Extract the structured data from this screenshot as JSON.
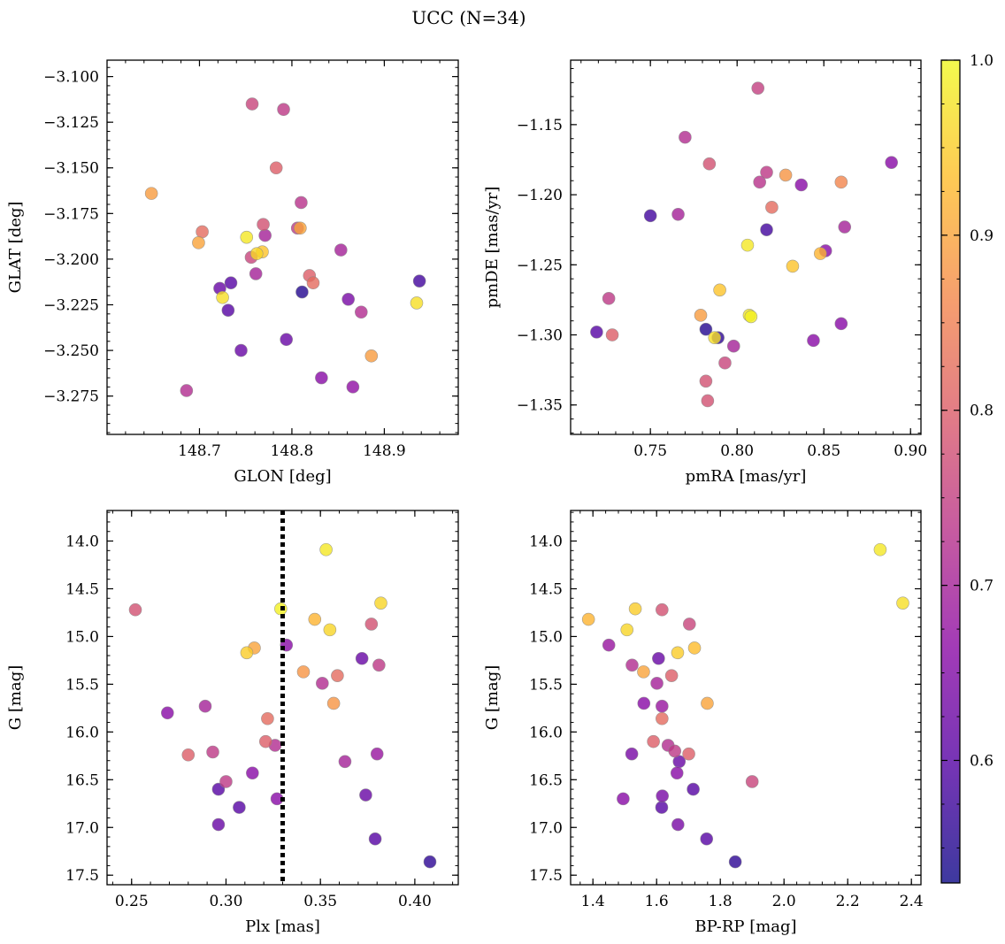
{
  "figure": {
    "title": "UCC (N=34)"
  },
  "colorbar": {
    "range": [
      0.53,
      1.0
    ],
    "ticks": [
      0.6,
      0.7,
      0.8,
      0.9,
      1.0
    ],
    "tick_labels": [
      "0.6",
      "0.7",
      "0.8",
      "0.9",
      "1.0"
    ],
    "colormap": "plasma",
    "stops": [
      "#0d0887",
      "#5302a3",
      "#8b0aa5",
      "#b83289",
      "#db5c68",
      "#f48849",
      "#febd2a",
      "#f0f921"
    ],
    "alpha": 0.8
  },
  "chart_data": [
    {
      "type": "scatter",
      "title": "",
      "xlabel": "GLON [deg]",
      "ylabel": "GLAT [deg]",
      "xlim": [
        148.6,
        148.98
      ],
      "ylim": [
        -3.296,
        -3.091
      ],
      "y_inverted": false,
      "xticks": [
        148.7,
        148.8,
        148.9
      ],
      "xtick_labels": [
        "148.7",
        "148.8",
        "148.9"
      ],
      "yticks": [
        -3.275,
        -3.25,
        -3.225,
        -3.2,
        -3.175,
        -3.15,
        -3.125,
        -3.1
      ],
      "ytick_labels": [
        "−3.275",
        "−3.250",
        "−3.225",
        "−3.200",
        "−3.175",
        "−3.150",
        "−3.125",
        "−3.100"
      ],
      "x": [
        148.757,
        148.791,
        148.783,
        148.648,
        148.806,
        148.703,
        148.699,
        148.769,
        148.771,
        148.751,
        148.762,
        148.81,
        148.768,
        148.761,
        148.853,
        148.756,
        148.819,
        148.734,
        148.722,
        148.823,
        148.811,
        148.725,
        148.861,
        148.875,
        148.731,
        148.938,
        148.935,
        148.794,
        148.745,
        148.886,
        148.832,
        148.866,
        148.686,
        148.809
      ],
      "y": [
        -3.115,
        -3.118,
        -3.15,
        -3.164,
        -3.183,
        -3.185,
        -3.191,
        -3.181,
        -3.187,
        -3.188,
        -3.197,
        -3.169,
        -3.196,
        -3.208,
        -3.195,
        -3.199,
        -3.209,
        -3.213,
        -3.216,
        -3.213,
        -3.218,
        -3.221,
        -3.222,
        -3.229,
        -3.228,
        -3.212,
        -3.224,
        -3.244,
        -3.25,
        -3.253,
        -3.265,
        -3.27,
        -3.272,
        -3.183
      ],
      "c": [
        0.76,
        0.74,
        0.8,
        0.89,
        0.74,
        0.82,
        0.9,
        0.78,
        0.7,
        0.98,
        0.96,
        0.73,
        0.94,
        0.7,
        0.7,
        0.76,
        0.8,
        0.6,
        0.62,
        0.82,
        0.55,
        0.97,
        0.64,
        0.72,
        0.6,
        0.58,
        0.97,
        0.62,
        0.62,
        0.89,
        0.66,
        0.67,
        0.72,
        0.9
      ]
    },
    {
      "type": "scatter",
      "title": "",
      "xlabel": "pmRA [mas/yr]",
      "ylabel": "pmDE [mas/yr]",
      "xlim": [
        0.704,
        0.906
      ],
      "ylim": [
        -1.371,
        -1.104
      ],
      "y_inverted": false,
      "xticks": [
        0.75,
        0.8,
        0.85,
        0.9
      ],
      "xtick_labels": [
        "0.75",
        "0.80",
        "0.85",
        "0.90"
      ],
      "yticks": [
        -1.35,
        -1.3,
        -1.25,
        -1.2,
        -1.15
      ],
      "ytick_labels": [
        "−1.35",
        "−1.30",
        "−1.25",
        "−1.20",
        "−1.15"
      ],
      "x": [
        0.812,
        0.77,
        0.784,
        0.889,
        0.813,
        0.817,
        0.828,
        0.86,
        0.837,
        0.82,
        0.75,
        0.766,
        0.817,
        0.862,
        0.806,
        0.851,
        0.848,
        0.832,
        0.726,
        0.79,
        0.779,
        0.807,
        0.719,
        0.728,
        0.782,
        0.789,
        0.787,
        0.844,
        0.86,
        0.798,
        0.793,
        0.782,
        0.783,
        0.808
      ],
      "y": [
        -1.124,
        -1.159,
        -1.178,
        -1.177,
        -1.191,
        -1.184,
        -1.186,
        -1.191,
        -1.193,
        -1.209,
        -1.215,
        -1.214,
        -1.225,
        -1.223,
        -1.236,
        -1.24,
        -1.242,
        -1.251,
        -1.274,
        -1.268,
        -1.286,
        -1.286,
        -1.298,
        -1.3,
        -1.296,
        -1.302,
        -1.302,
        -1.304,
        -1.292,
        -1.308,
        -1.32,
        -1.333,
        -1.347,
        -1.287
      ],
      "c": [
        0.75,
        0.72,
        0.78,
        0.66,
        0.73,
        0.74,
        0.88,
        0.86,
        0.66,
        0.82,
        0.58,
        0.7,
        0.58,
        0.7,
        0.98,
        0.66,
        0.92,
        0.94,
        0.74,
        0.94,
        0.89,
        0.98,
        0.6,
        0.8,
        0.55,
        0.56,
        0.97,
        0.66,
        0.66,
        0.7,
        0.76,
        0.78,
        0.78,
        0.99
      ]
    },
    {
      "type": "scatter",
      "title": "",
      "xlabel": "Plx [mas]",
      "ylabel": "G [mag]",
      "xlim": [
        0.237,
        0.423
      ],
      "ylim": [
        17.6,
        13.68
      ],
      "y_inverted": true,
      "xticks": [
        0.25,
        0.3,
        0.35,
        0.4
      ],
      "xtick_labels": [
        "0.25",
        "0.30",
        "0.35",
        "0.40"
      ],
      "yticks": [
        14.0,
        14.5,
        15.0,
        15.5,
        16.0,
        16.5,
        17.0,
        17.5
      ],
      "ytick_labels": [
        "14.0",
        "14.5",
        "15.0",
        "15.5",
        "16.0",
        "16.5",
        "17.0",
        "17.5"
      ],
      "vline": {
        "x": 0.33,
        "style": "dotted",
        "color": "#000000"
      },
      "x": [
        0.353,
        0.382,
        0.252,
        0.329,
        0.347,
        0.377,
        0.355,
        0.315,
        0.311,
        0.332,
        0.372,
        0.381,
        0.351,
        0.341,
        0.359,
        0.357,
        0.269,
        0.289,
        0.322,
        0.321,
        0.326,
        0.28,
        0.293,
        0.38,
        0.363,
        0.314,
        0.3,
        0.296,
        0.327,
        0.374,
        0.307,
        0.296,
        0.379,
        0.408
      ],
      "y": [
        14.09,
        14.65,
        14.72,
        14.71,
        14.82,
        14.87,
        14.93,
        15.12,
        15.17,
        15.09,
        15.23,
        15.3,
        15.49,
        15.37,
        15.41,
        15.7,
        15.8,
        15.73,
        15.86,
        16.1,
        16.14,
        16.24,
        16.21,
        16.23,
        16.31,
        16.43,
        16.52,
        16.6,
        16.7,
        16.66,
        16.79,
        16.97,
        17.12,
        17.36
      ],
      "c": [
        0.98,
        0.96,
        0.78,
        0.99,
        0.92,
        0.78,
        0.96,
        0.9,
        0.95,
        0.66,
        0.62,
        0.74,
        0.72,
        0.88,
        0.82,
        0.88,
        0.66,
        0.7,
        0.82,
        0.8,
        0.72,
        0.8,
        0.74,
        0.68,
        0.7,
        0.66,
        0.74,
        0.6,
        0.66,
        0.62,
        0.6,
        0.62,
        0.6,
        0.56
      ]
    },
    {
      "type": "scatter",
      "title": "",
      "xlabel": "BP-RP [mag]",
      "ylabel": "G [mag]",
      "xlim": [
        1.33,
        2.43
      ],
      "ylim": [
        17.6,
        13.68
      ],
      "y_inverted": true,
      "xticks": [
        1.4,
        1.6,
        1.8,
        2.0,
        2.2,
        2.4
      ],
      "xtick_labels": [
        "1.4",
        "1.6",
        "1.8",
        "2.0",
        "2.2",
        "2.4"
      ],
      "yticks": [
        14.0,
        14.5,
        15.0,
        15.5,
        16.0,
        16.5,
        17.0,
        17.5
      ],
      "ytick_labels": [
        "14.0",
        "14.5",
        "15.0",
        "15.5",
        "16.0",
        "16.5",
        "17.0",
        "17.5"
      ],
      "x": [
        2.302,
        2.373,
        1.386,
        1.533,
        1.617,
        1.507,
        1.703,
        1.45,
        1.666,
        1.719,
        1.606,
        1.523,
        1.559,
        1.647,
        1.601,
        1.759,
        1.56,
        1.617,
        1.617,
        1.59,
        1.636,
        1.657,
        1.701,
        1.522,
        1.671,
        1.664,
        1.9,
        1.715,
        1.495,
        1.618,
        1.616,
        1.667,
        1.757,
        1.847
      ],
      "y": [
        14.09,
        14.65,
        14.82,
        14.71,
        14.72,
        14.93,
        14.87,
        15.09,
        15.17,
        15.12,
        15.23,
        15.3,
        15.37,
        15.41,
        15.49,
        15.7,
        15.7,
        15.73,
        15.86,
        16.1,
        16.14,
        16.2,
        16.23,
        16.23,
        16.31,
        16.43,
        16.52,
        16.6,
        16.7,
        16.67,
        16.79,
        16.97,
        17.12,
        17.36
      ],
      "c": [
        0.98,
        0.97,
        0.92,
        0.95,
        0.78,
        0.96,
        0.76,
        0.68,
        0.95,
        0.93,
        0.62,
        0.72,
        0.9,
        0.8,
        0.7,
        0.9,
        0.66,
        0.68,
        0.82,
        0.8,
        0.72,
        0.74,
        0.8,
        0.64,
        0.62,
        0.66,
        0.76,
        0.6,
        0.66,
        0.64,
        0.6,
        0.64,
        0.6,
        0.56
      ]
    }
  ]
}
